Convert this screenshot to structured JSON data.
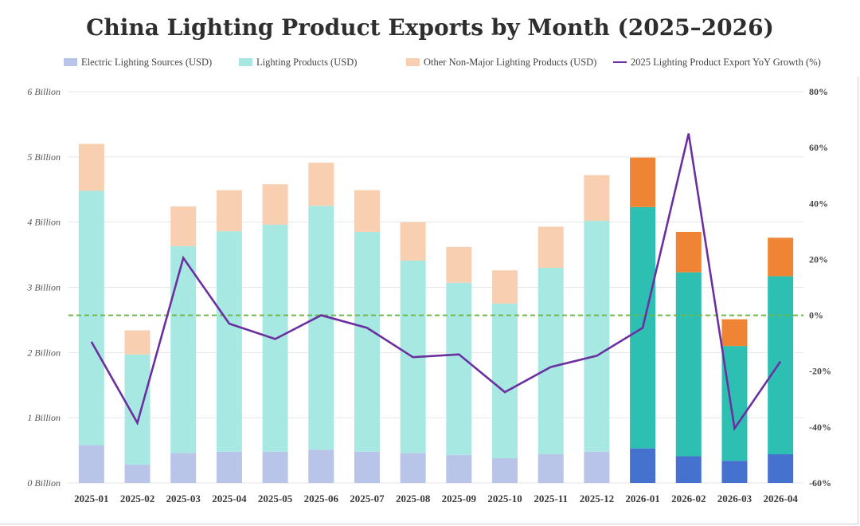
{
  "chart_data": {
    "type": "bar",
    "title": "China Lighting Product Exports by Month (2025–2026)",
    "categories": [
      "2025-01",
      "2025-02",
      "2025-03",
      "2025-04",
      "2025-05",
      "2025-06",
      "2025-07",
      "2025-08",
      "2025-09",
      "2025-10",
      "2025-11",
      "2025-12",
      "2026-01",
      "2026-02",
      "2026-03",
      "2026-04"
    ],
    "stacked": true,
    "series": [
      {
        "name": "Electric Lighting Sources (USD)",
        "kind": "bar",
        "axis": "left",
        "values": [
          0.58,
          0.28,
          0.46,
          0.48,
          0.48,
          0.51,
          0.48,
          0.46,
          0.43,
          0.38,
          0.44,
          0.48,
          0.53,
          0.41,
          0.34,
          0.44
        ],
        "color": "#b8c5e9",
        "color_highlight": "#4672cf"
      },
      {
        "name": "Lighting Products (USD)",
        "kind": "bar",
        "axis": "left",
        "values": [
          3.9,
          1.69,
          3.17,
          3.38,
          3.48,
          3.74,
          3.37,
          2.95,
          2.64,
          2.37,
          2.86,
          3.54,
          3.7,
          2.82,
          1.76,
          2.73
        ],
        "color": "#a8e8e2",
        "color_highlight": "#2ebfb3"
      },
      {
        "name": "Other Non-Major Lighting Products (USD)",
        "kind": "bar",
        "axis": "left",
        "values": [
          0.72,
          0.37,
          0.61,
          0.63,
          0.62,
          0.66,
          0.64,
          0.59,
          0.55,
          0.51,
          0.63,
          0.7,
          0.76,
          0.62,
          0.41,
          0.59
        ],
        "color": "#f8cfb1",
        "color_highlight": "#ef8434"
      },
      {
        "name": "2025 Lighting Product Export YoY Growth (%)",
        "kind": "line",
        "axis": "right",
        "values": [
          -9.5,
          -38.5,
          20.5,
          -3.0,
          -8.5,
          0.0,
          -4.5,
          -15.0,
          -14.0,
          -27.5,
          -18.5,
          -14.5,
          -4.5,
          65.0,
          -40.5,
          -16.5
        ],
        "color": "#6b2fa0"
      }
    ],
    "highlight_categories": [
      "2026-01",
      "2026-02",
      "2026-03",
      "2026-04"
    ],
    "ylim": [
      0,
      6
    ],
    "yticks": [
      0,
      1,
      2,
      3,
      4,
      5,
      6
    ],
    "ytick_labels": [
      "0 Billion",
      "1 Billion",
      "2 Billion",
      "3 Billion",
      "4 Billion",
      "5 Billion",
      "6 Billion"
    ],
    "y2lim": [
      -60,
      80
    ],
    "y2ticks": [
      -60,
      -40,
      -20,
      0,
      20,
      40,
      60,
      80
    ],
    "y2tick_labels": [
      "-60%",
      "-40%",
      "-20%",
      "0%",
      "20%",
      "40%",
      "60%",
      "80%"
    ],
    "reference_line": {
      "axis": "right",
      "value": 0,
      "style": "dashed",
      "color": "#6fb84a"
    },
    "grid": true,
    "legend_position": "top"
  }
}
